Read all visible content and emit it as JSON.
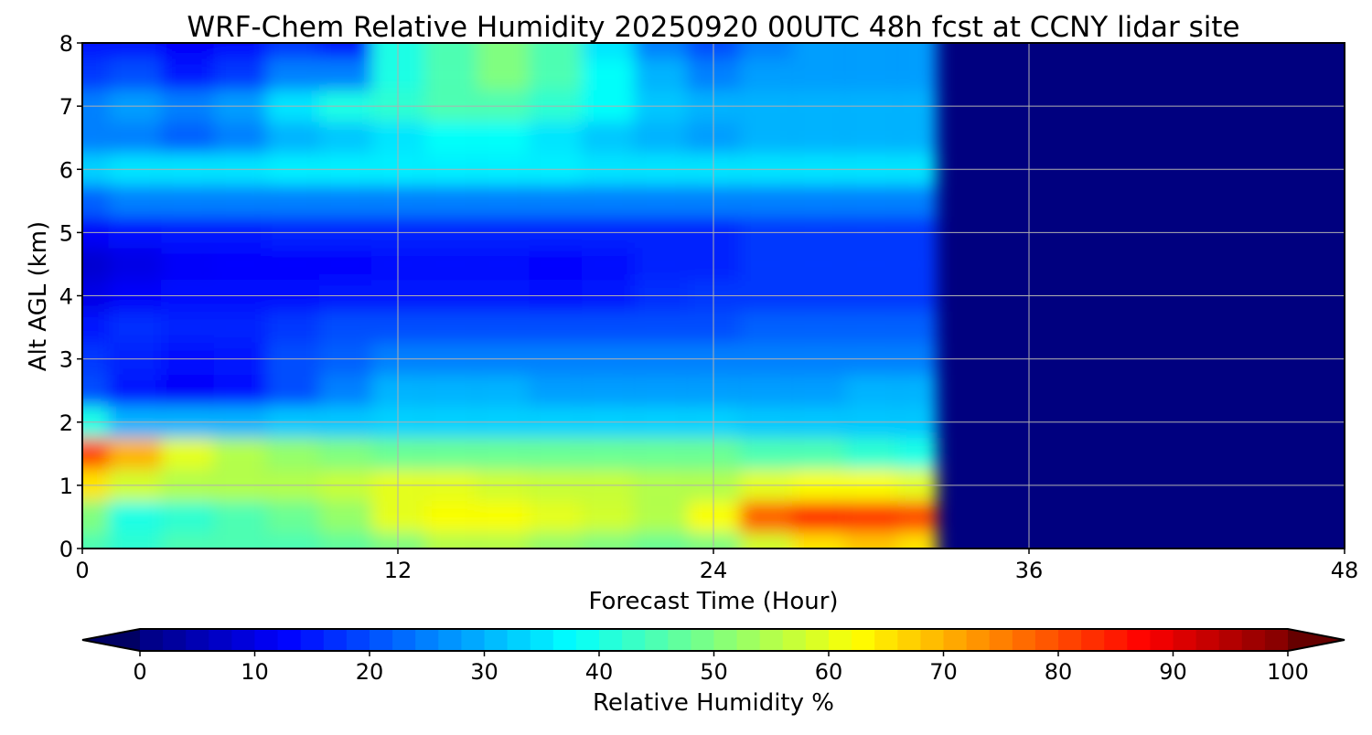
{
  "chart_data": {
    "type": "heatmap",
    "title": "WRF-Chem Relative Humidity 20250920 00UTC 48h fcst at CCNY lidar site",
    "xlabel": "Forecast Time (Hour)",
    "ylabel": "Alt AGL (km)",
    "xlim": [
      0,
      48
    ],
    "ylim": [
      0,
      8
    ],
    "xticks": [
      "0",
      "12",
      "24",
      "36",
      "48"
    ],
    "yticks": [
      "0",
      "1",
      "2",
      "3",
      "4",
      "5",
      "6",
      "7",
      "8"
    ],
    "grid": true,
    "x_hours": [
      0,
      2,
      4,
      6,
      8,
      10,
      12,
      14,
      16,
      18,
      20,
      22,
      24,
      26,
      28,
      30,
      32
    ],
    "data_valid_until_hour": 32.5,
    "missing_value_rh": 0,
    "heights_km": [
      8,
      7.5,
      7,
      6.5,
      6,
      5.5,
      5,
      4.5,
      4,
      3.5,
      3,
      2.5,
      2,
      1.5,
      1,
      0.5,
      0
    ],
    "rh_percent": [
      [
        15,
        15,
        12,
        14,
        18,
        15,
        40,
        45,
        50,
        45,
        35,
        25,
        20,
        25,
        28,
        28,
        28
      ],
      [
        18,
        20,
        15,
        18,
        25,
        25,
        40,
        45,
        50,
        45,
        38,
        30,
        25,
        28,
        28,
        28,
        28
      ],
      [
        25,
        28,
        25,
        28,
        35,
        40,
        42,
        45,
        45,
        42,
        38,
        32,
        30,
        30,
        30,
        30,
        30
      ],
      [
        25,
        25,
        22,
        25,
        30,
        32,
        35,
        38,
        38,
        35,
        32,
        30,
        28,
        30,
        30,
        30,
        30
      ],
      [
        33,
        35,
        35,
        35,
        36,
        36,
        36,
        36,
        36,
        36,
        35,
        35,
        35,
        35,
        35,
        35,
        35
      ],
      [
        22,
        25,
        25,
        25,
        25,
        25,
        25,
        25,
        25,
        25,
        25,
        25,
        25,
        25,
        25,
        25,
        25
      ],
      [
        12,
        14,
        15,
        15,
        16,
        16,
        16,
        16,
        16,
        16,
        16,
        16,
        16,
        18,
        18,
        18,
        18
      ],
      [
        8,
        10,
        12,
        13,
        13,
        13,
        14,
        14,
        14,
        13,
        14,
        16,
        16,
        18,
        18,
        18,
        18
      ],
      [
        10,
        12,
        14,
        14,
        14,
        15,
        15,
        15,
        15,
        14,
        15,
        17,
        18,
        18,
        18,
        18,
        18
      ],
      [
        15,
        17,
        16,
        16,
        18,
        20,
        20,
        20,
        20,
        20,
        20,
        20,
        20,
        22,
        22,
        22,
        22
      ],
      [
        18,
        16,
        14,
        15,
        20,
        22,
        25,
        25,
        25,
        25,
        25,
        25,
        25,
        25,
        25,
        25,
        25
      ],
      [
        20,
        15,
        12,
        14,
        20,
        25,
        30,
        30,
        30,
        28,
        28,
        28,
        28,
        28,
        28,
        30,
        30
      ],
      [
        40,
        30,
        30,
        30,
        32,
        32,
        33,
        33,
        33,
        33,
        33,
        33,
        33,
        32,
        32,
        32,
        32
      ],
      [
        80,
        70,
        60,
        55,
        52,
        50,
        48,
        48,
        48,
        48,
        48,
        48,
        48,
        45,
        45,
        42,
        40
      ],
      [
        65,
        58,
        55,
        55,
        55,
        57,
        60,
        60,
        58,
        57,
        57,
        55,
        55,
        60,
        62,
        62,
        60
      ],
      [
        50,
        40,
        42,
        45,
        48,
        52,
        60,
        62,
        62,
        60,
        58,
        55,
        62,
        78,
        83,
        82,
        80
      ],
      [
        45,
        42,
        45,
        45,
        45,
        47,
        50,
        55,
        55,
        52,
        50,
        48,
        50,
        58,
        65,
        68,
        65
      ]
    ],
    "colorbar": {
      "label": "Relative Humidity %",
      "range": [
        0,
        100
      ],
      "ticks": [
        "0",
        "10",
        "20",
        "30",
        "40",
        "50",
        "60",
        "70",
        "80",
        "90",
        "100"
      ],
      "colormap": "jet",
      "extend": "both"
    }
  }
}
